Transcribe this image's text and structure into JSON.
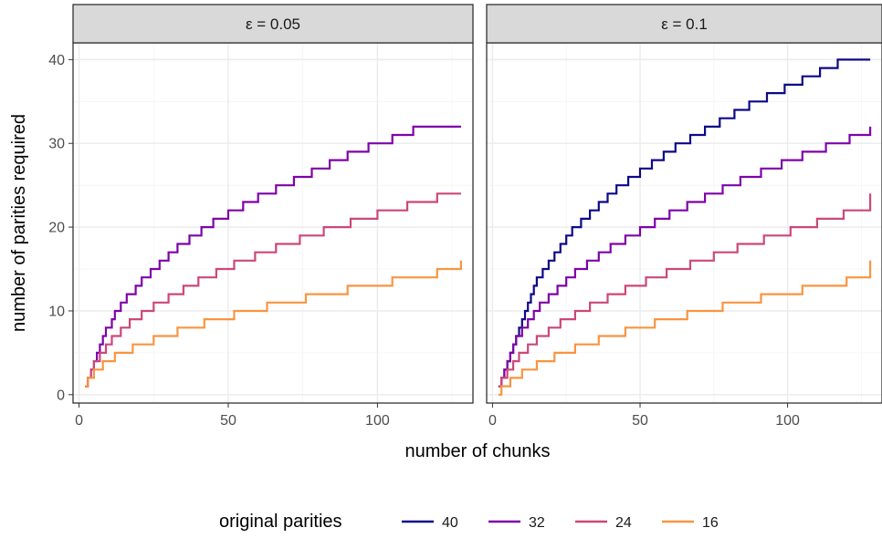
{
  "chart_data": {
    "type": "line",
    "step": true,
    "facet_var": "ε",
    "facets": [
      {
        "label": "ε = 0.05",
        "series": [
          {
            "name": "32",
            "x": [
              2,
              3,
              4,
              5,
              6,
              7,
              8,
              9,
              11,
              12,
              14,
              16,
              19,
              21,
              24,
              27,
              30,
              33,
              37,
              41,
              45,
              50,
              55,
              60,
              66,
              72,
              78,
              84,
              90,
              97,
              105,
              112,
              120,
              128
            ],
            "y": [
              1,
              2,
              3,
              4,
              5,
              6,
              7,
              8,
              9,
              10,
              11,
              12,
              13,
              14,
              15,
              16,
              17,
              18,
              19,
              20,
              21,
              22,
              23,
              24,
              25,
              26,
              27,
              28,
              29,
              30,
              31,
              32,
              32,
              32
            ]
          },
          {
            "name": "24",
            "x": [
              2,
              3,
              4,
              5,
              7,
              9,
              11,
              14,
              17,
              21,
              25,
              30,
              35,
              40,
              46,
              52,
              59,
              66,
              74,
              82,
              91,
              100,
              110,
              120,
              128
            ],
            "y": [
              1,
              2,
              3,
              4,
              5,
              6,
              7,
              8,
              9,
              10,
              11,
              12,
              13,
              14,
              15,
              16,
              17,
              18,
              19,
              20,
              21,
              22,
              23,
              24,
              24
            ]
          },
          {
            "name": "16",
            "x": [
              2,
              3,
              5,
              8,
              12,
              18,
              25,
              33,
              42,
              52,
              63,
              76,
              90,
              105,
              120,
              128
            ],
            "y": [
              1,
              2,
              3,
              4,
              5,
              6,
              7,
              8,
              9,
              10,
              11,
              12,
              13,
              14,
              15,
              16
            ]
          }
        ]
      },
      {
        "label": "ε = 0.1",
        "series": [
          {
            "name": "40",
            "x": [
              2,
              3,
              4,
              5,
              6,
              7,
              8,
              9,
              10,
              11,
              12,
              13,
              14,
              15,
              17,
              19,
              21,
              23,
              25,
              27,
              30,
              33,
              36,
              39,
              42,
              46,
              50,
              54,
              58,
              62,
              67,
              72,
              77,
              82,
              87,
              93,
              99,
              105,
              111,
              117,
              123,
              128
            ],
            "y": [
              1,
              2,
              3,
              4,
              5,
              6,
              7,
              8,
              9,
              10,
              11,
              12,
              13,
              14,
              15,
              16,
              17,
              18,
              19,
              20,
              21,
              22,
              23,
              24,
              25,
              26,
              27,
              28,
              29,
              30,
              31,
              32,
              33,
              34,
              35,
              36,
              37,
              38,
              39,
              40,
              40,
              40
            ]
          },
          {
            "name": "32",
            "x": [
              2,
              3,
              4,
              5,
              6,
              7,
              8,
              10,
              12,
              14,
              16,
              19,
              22,
              25,
              28,
              32,
              36,
              40,
              45,
              50,
              55,
              60,
              66,
              72,
              78,
              84,
              91,
              98,
              105,
              113,
              121,
              128
            ],
            "y": [
              1,
              2,
              3,
              4,
              5,
              6,
              7,
              8,
              9,
              10,
              11,
              12,
              13,
              14,
              15,
              16,
              17,
              18,
              19,
              20,
              21,
              22,
              23,
              24,
              25,
              26,
              27,
              28,
              29,
              30,
              31,
              32
            ]
          },
          {
            "name": "24",
            "x": [
              2,
              3,
              5,
              7,
              9,
              12,
              15,
              19,
              23,
              28,
              33,
              39,
              45,
              52,
              59,
              67,
              75,
              83,
              92,
              101,
              110,
              119,
              128
            ],
            "y": [
              1,
              2,
              3,
              4,
              5,
              6,
              7,
              8,
              9,
              10,
              11,
              12,
              13,
              14,
              15,
              16,
              17,
              18,
              19,
              20,
              21,
              22,
              24
            ]
          },
          {
            "name": "16",
            "x": [
              2,
              3,
              6,
              10,
              15,
              21,
              28,
              36,
              45,
              55,
              66,
              78,
              91,
              105,
              120,
              128
            ],
            "y": [
              0,
              1,
              2,
              3,
              4,
              5,
              6,
              7,
              8,
              9,
              10,
              11,
              12,
              13,
              14,
              16
            ]
          }
        ]
      }
    ],
    "xlabel": "number of chunks",
    "ylabel": "number of parities required",
    "xlim": [
      -2,
      132
    ],
    "ylim": [
      -1,
      42
    ],
    "x_ticks": [
      0,
      50,
      100
    ],
    "y_ticks": [
      0,
      10,
      20,
      30,
      40
    ],
    "grid": true,
    "legend": {
      "title": "original parities",
      "position": "bottom",
      "entries": [
        {
          "name": "40",
          "color": "#0d0887"
        },
        {
          "name": "32",
          "color": "#7e03a8"
        },
        {
          "name": "24",
          "color": "#cc4778"
        },
        {
          "name": "16",
          "color": "#f89540"
        }
      ]
    }
  }
}
